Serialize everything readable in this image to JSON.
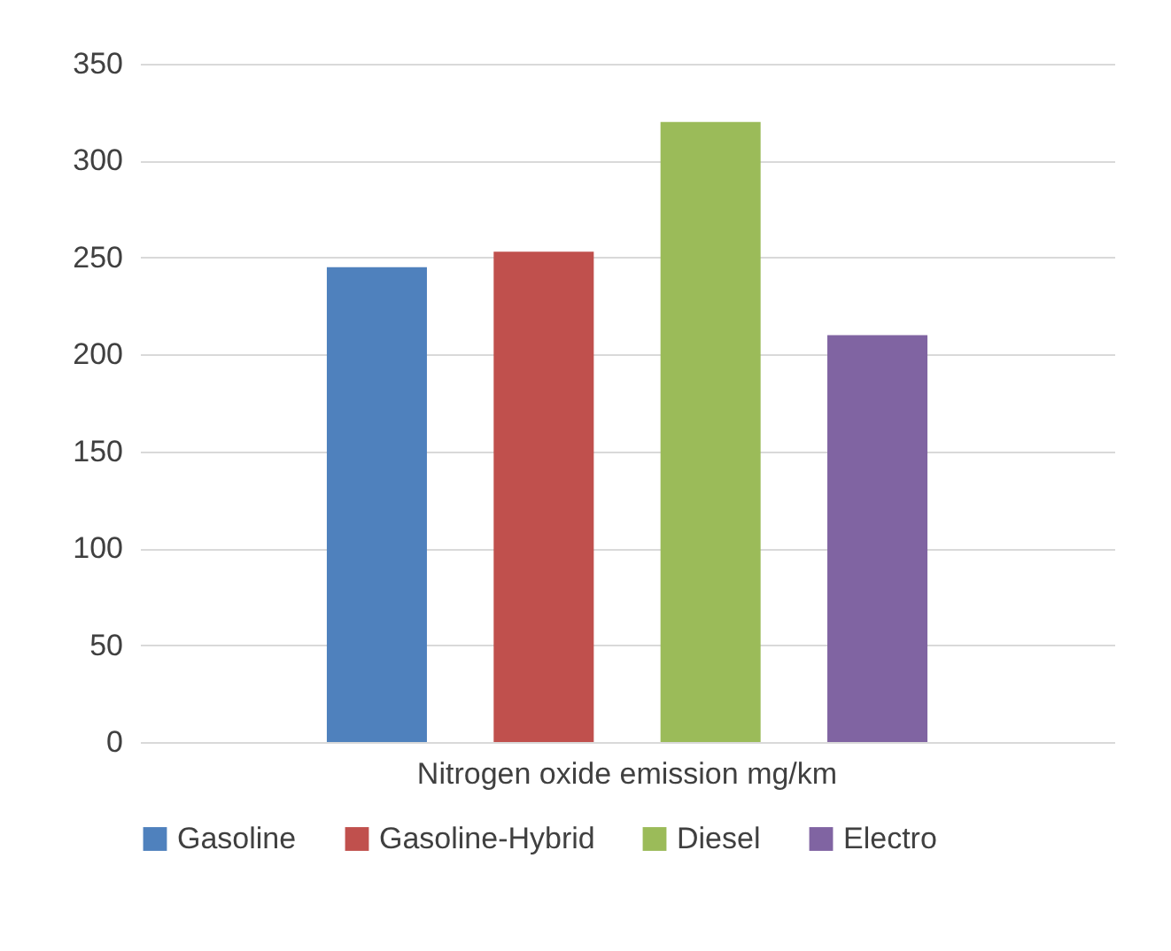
{
  "chart_data": {
    "type": "bar",
    "categories": [
      "Nitrogen oxide emission mg/km"
    ],
    "series": [
      {
        "name": "Gasoline",
        "color": "#4f81bd",
        "values": [
          245
        ]
      },
      {
        "name": "Gasoline-Hybrid",
        "color": "#c0504d",
        "values": [
          253
        ]
      },
      {
        "name": "Diesel",
        "color": "#9bbb59",
        "values": [
          320
        ]
      },
      {
        "name": "Electro",
        "color": "#8064a2",
        "values": [
          210
        ]
      }
    ],
    "ylim": [
      0,
      350
    ],
    "yticks": [
      0,
      50,
      100,
      150,
      200,
      250,
      300,
      350
    ],
    "grid": "y",
    "legend": "bottom"
  }
}
